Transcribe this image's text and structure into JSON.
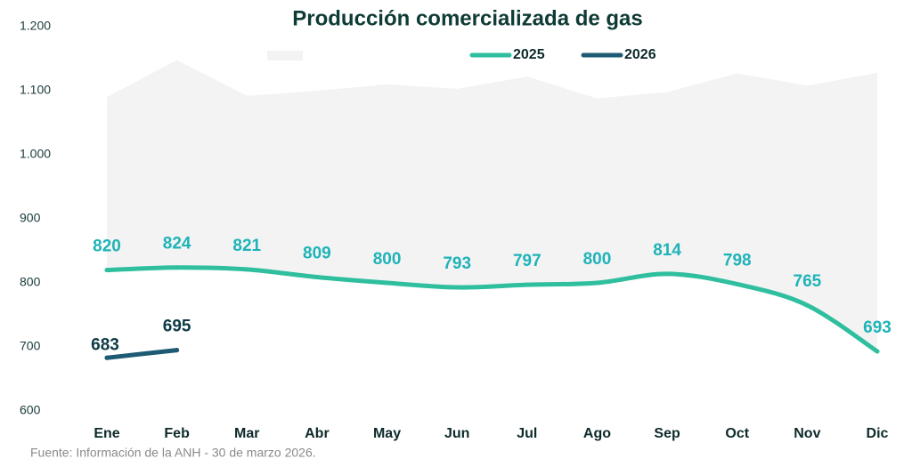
{
  "chart_data": {
    "type": "line",
    "title": "Producción comercializada de gas",
    "categories": [
      "Ene",
      "Feb",
      "Mar",
      "Abr",
      "May",
      "Jun",
      "Jul",
      "Ago",
      "Sep",
      "Oct",
      "Nov",
      "Dic"
    ],
    "series": [
      {
        "color": "#f3f3f4",
        "kind": "area",
        "values": [
          1090,
          1148,
          1092,
          1100,
          1110,
          1103,
          1122,
          1088,
          1098,
          1127,
          1108,
          1128
        ]
      },
      {
        "name": "2025",
        "color": "#2fbf9e",
        "label_color": "#1fb3b8",
        "values": [
          820,
          824,
          821,
          809,
          800,
          793,
          797,
          800,
          814,
          798,
          765,
          693
        ]
      },
      {
        "name": "2026",
        "color": "#1e5a73",
        "label_color": "#0d3a45",
        "values": [
          683,
          695,
          null,
          null,
          null,
          null,
          null,
          null,
          null,
          null,
          null,
          null
        ]
      }
    ],
    "ylim": [
      600,
      1200
    ],
    "yticks": [
      600,
      700,
      800,
      900,
      {
        "value": 1000,
        "label": "1.000"
      },
      {
        "value": 1100,
        "label": "1.100"
      },
      {
        "value": 1200,
        "label": "1.200"
      }
    ],
    "source": "Fuente: Información de la ANH - 30 de marzo 2026."
  }
}
